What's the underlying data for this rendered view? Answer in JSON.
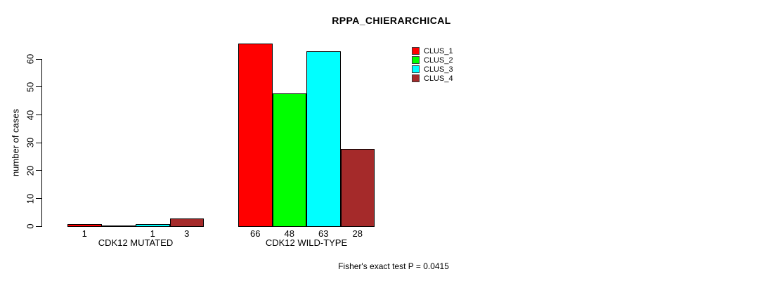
{
  "chart_data": {
    "type": "bar",
    "title": "RPPA_CHIERARCHICAL",
    "ylabel": "number of cases",
    "xlabel": "",
    "ylim": [
      0,
      60
    ],
    "yticks": [
      0,
      10,
      20,
      30,
      40,
      50,
      60
    ],
    "grid": false,
    "legend_position": "top-right",
    "categories": [
      "CDK12 MUTATED",
      "CDK12 WILD-TYPE"
    ],
    "series": [
      {
        "name": "CLUS_1",
        "color": "#ff0000",
        "values": [
          1,
          66
        ]
      },
      {
        "name": "CLUS_2",
        "color": "#00ff00",
        "values": [
          0,
          48
        ]
      },
      {
        "name": "CLUS_3",
        "color": "#00ffff",
        "values": [
          1,
          63
        ]
      },
      {
        "name": "CLUS_4",
        "color": "#a52a2a",
        "values": [
          3,
          28
        ]
      }
    ],
    "bar_value_labels": [
      [
        "1",
        "",
        "1",
        "3"
      ],
      [
        "66",
        "48",
        "63",
        "28"
      ]
    ],
    "footnote": "Fisher's exact test P = 0.0415"
  }
}
